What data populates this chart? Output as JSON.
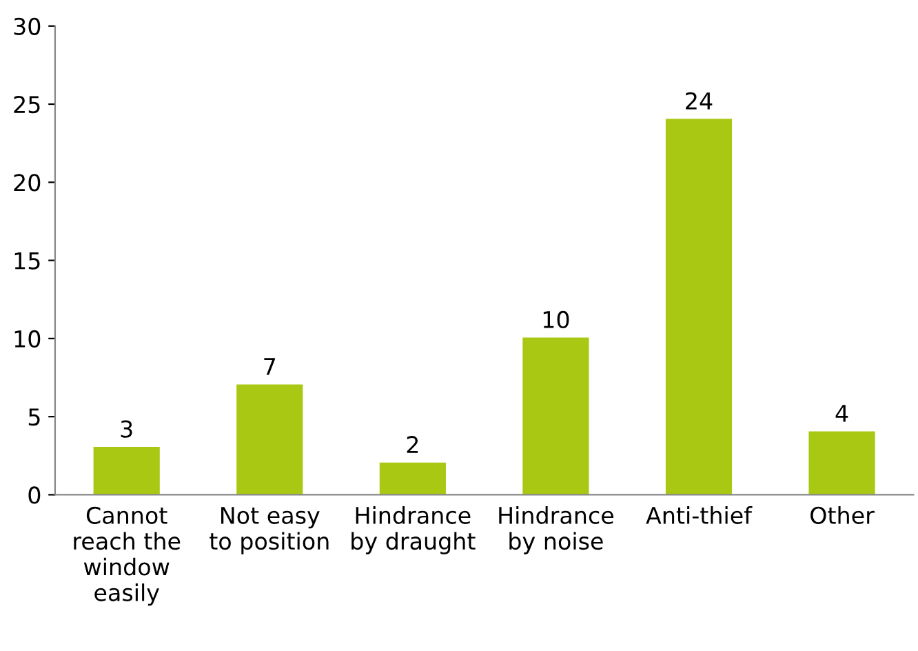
{
  "chart_data": {
    "type": "bar",
    "categories": [
      "Cannot\nreach the\nwindow\neasily",
      "Not easy\nto position",
      "Hindrance\nby draught",
      "Hindrance\nby noise",
      "Anti-thief",
      "Other"
    ],
    "values": [
      3,
      7,
      2,
      10,
      24,
      4
    ],
    "color": "#a8c814",
    "ylim": [
      0,
      30
    ],
    "yticks": [
      0,
      5,
      10,
      15,
      20,
      25,
      30
    ],
    "data_labels": true,
    "grid": false,
    "legend": false
  }
}
